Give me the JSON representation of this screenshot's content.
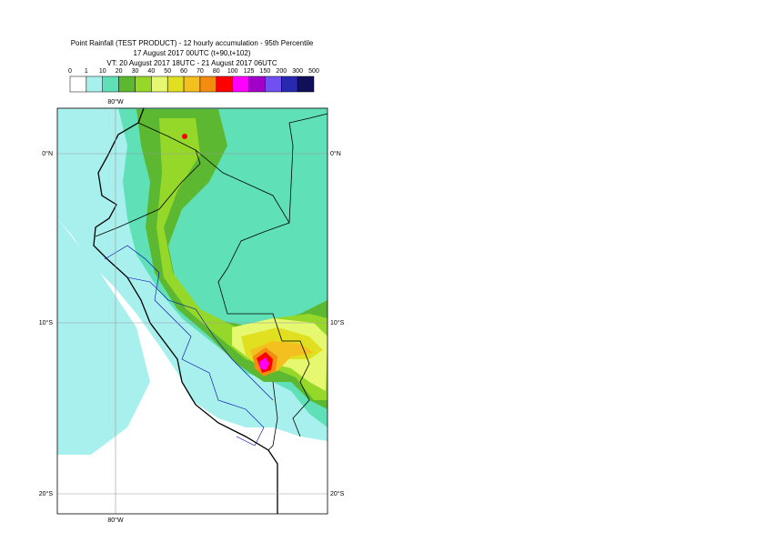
{
  "header": {
    "title": "Point Rainfall (TEST PRODUCT) - 12 hourly accumulation - 95th Percentile",
    "line2": "17 August 2017 00UTC (t+90,t+102)",
    "line3": "VT: 20 August 2017 18UTC - 21 August 2017 06UTC"
  },
  "legend": {
    "levels": [
      0,
      1,
      10,
      20,
      30,
      40,
      50,
      60,
      70,
      80,
      100,
      125,
      150,
      200,
      300,
      500
    ],
    "colors": [
      "#ffffff",
      "#a8f0ee",
      "#5fe0b6",
      "#5cb830",
      "#96d82a",
      "#e6f870",
      "#e0e020",
      "#f4c020",
      "#f48c10",
      "#ff0000",
      "#ff00ff",
      "#a000c8",
      "#7050f0",
      "#2828b0",
      "#101058"
    ]
  },
  "map": {
    "top_labels": [
      "80°W"
    ],
    "bottom_labels": [
      "80°W"
    ],
    "left_labels": [
      "0°N",
      "10°S",
      "20°S"
    ],
    "right_labels": [
      "0°N",
      "10°S",
      "20°S"
    ]
  }
}
